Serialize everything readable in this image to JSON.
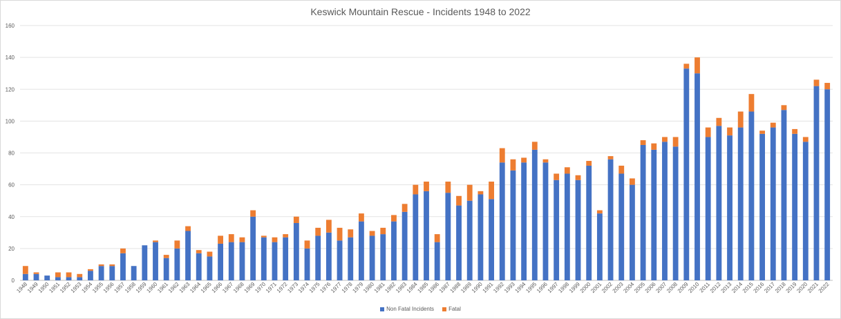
{
  "chart_data": {
    "type": "bar",
    "stacked": true,
    "title": "Keswick Mountain Rescue - Incidents 1948 to 2022",
    "xlabel": "",
    "ylabel": "",
    "ylim": [
      0,
      160
    ],
    "yticks": [
      0,
      20,
      40,
      60,
      80,
      100,
      120,
      140,
      160
    ],
    "grid": true,
    "legend_position": "bottom",
    "categories": [
      "1948",
      "1949",
      "1950",
      "1951",
      "1952",
      "1953",
      "1954",
      "1955",
      "1956",
      "1957",
      "1958",
      "1959",
      "1960",
      "1961",
      "1962",
      "1963",
      "1964",
      "1965",
      "1966",
      "1967",
      "1968",
      "1969",
      "1970",
      "1971",
      "1972",
      "1973",
      "1974",
      "1975",
      "1976",
      "1977",
      "1978",
      "1979",
      "1980",
      "1981",
      "1982",
      "1983",
      "1984",
      "1985",
      "1986",
      "1987",
      "1988",
      "1989",
      "1990",
      "1991",
      "1992",
      "1993",
      "1994",
      "1995",
      "1996",
      "1997",
      "1998",
      "1999",
      "2000",
      "2001",
      "2002",
      "2003",
      "2004",
      "2005",
      "2006",
      "2007",
      "2008",
      "2009",
      "2010",
      "2011",
      "2012",
      "2013",
      "2014",
      "2015",
      "2016",
      "2017",
      "2018",
      "2019",
      "2020",
      "2021",
      "2022"
    ],
    "series": [
      {
        "name": "Non Fatal Incidents",
        "color": "#4472c4",
        "values": [
          4,
          4,
          3,
          2,
          2,
          2,
          6,
          9,
          9,
          17,
          9,
          22,
          24,
          14,
          20,
          31,
          17,
          15,
          23,
          24,
          24,
          40,
          27,
          24,
          27,
          36,
          20,
          28,
          30,
          25,
          27,
          37,
          28,
          29,
          37,
          43,
          54,
          56,
          24,
          55,
          47,
          50,
          54,
          51,
          74,
          69,
          74,
          82,
          74,
          63,
          67,
          63,
          72,
          42,
          76,
          67,
          60,
          85,
          82,
          87,
          84,
          133,
          130,
          90,
          97,
          91,
          96,
          106,
          92,
          96,
          107,
          92,
          87,
          122,
          120
        ]
      },
      {
        "name": "Fatal",
        "color": "#ed7d31",
        "values": [
          5,
          1,
          0,
          3,
          3,
          2,
          1,
          1,
          1,
          3,
          0,
          0,
          1,
          2,
          5,
          3,
          2,
          3,
          5,
          5,
          3,
          4,
          1,
          3,
          2,
          4,
          5,
          5,
          8,
          8,
          5,
          5,
          3,
          4,
          4,
          5,
          6,
          6,
          5,
          7,
          6,
          10,
          2,
          11,
          9,
          7,
          3,
          5,
          2,
          4,
          4,
          3,
          3,
          2,
          2,
          5,
          4,
          3,
          4,
          3,
          6,
          3,
          10,
          6,
          5,
          5,
          10,
          11,
          2,
          3,
          3,
          3,
          3,
          4,
          4
        ]
      }
    ]
  }
}
